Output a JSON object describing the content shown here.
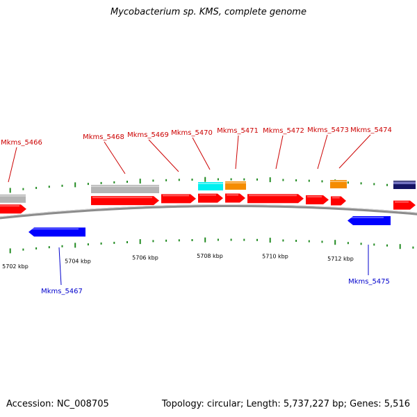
{
  "title": "Mycobacterium sp. KMS, complete genome",
  "footer": {
    "accession": "Accession: NC_008705",
    "stats": "Topology: circular; Length: 5,737,227 bp; Genes: 5,516"
  },
  "axis": {
    "unit": "kbp",
    "tick_labels": [
      "5702 kbp",
      "5704 kbp",
      "5706 kbp",
      "5708 kbp",
      "5710 kbp",
      "5712 kbp"
    ]
  },
  "genes": [
    {
      "name": "Mkms_5466",
      "strand": "forward",
      "color": "#ff0000"
    },
    {
      "name": "Mkms_5467",
      "strand": "reverse",
      "color": "#0000ff"
    },
    {
      "name": "Mkms_5468",
      "strand": "forward",
      "color": "#ff0000"
    },
    {
      "name": "Mkms_5469",
      "strand": "forward",
      "color": "#ff0000"
    },
    {
      "name": "Mkms_5470",
      "strand": "forward",
      "color": "#ff0000"
    },
    {
      "name": "Mkms_5471",
      "strand": "forward",
      "color": "#ff0000"
    },
    {
      "name": "Mkms_5472",
      "strand": "forward",
      "color": "#ff0000"
    },
    {
      "name": "Mkms_5473",
      "strand": "forward",
      "color": "#ff0000"
    },
    {
      "name": "Mkms_5474",
      "strand": "forward",
      "color": "#ff0000"
    },
    {
      "name": "Mkms_5475",
      "strand": "reverse",
      "color": "#0000ff"
    }
  ],
  "feature_colors": {
    "forward_gene": "#ff0000",
    "reverse_gene": "#0000ff",
    "grey_feature": "#b4b4b4",
    "cyan_feature": "#00f0f0",
    "orange_feature": "#f58c00",
    "navy_feature": "#141464",
    "tick": "#228b22",
    "backbone": "#8c8c8c",
    "forward_label": "#cc0000",
    "reverse_label": "#0000cc"
  }
}
